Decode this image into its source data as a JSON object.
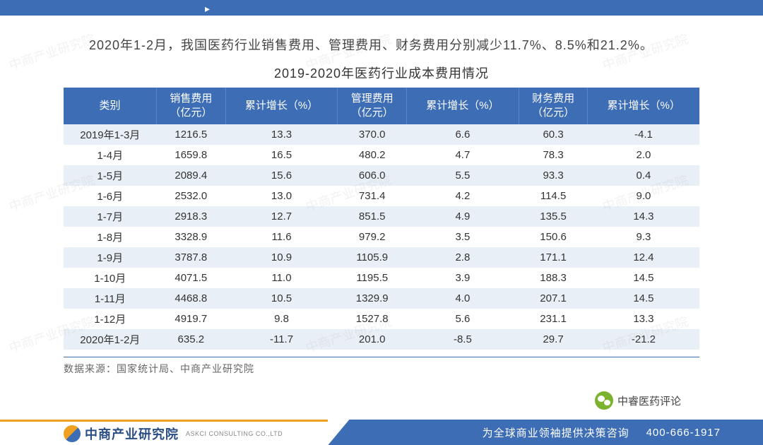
{
  "paragraph": "2020年1-2月，我国医药行业销售费用、管理费用、财务费用分别减少11.7%、8.5%和21.2%。",
  "table": {
    "title": "2019-2020年医药行业成本费用情况",
    "columns": [
      "类别",
      "销售费用（亿元）",
      "累计增长（%）",
      "管理费用（亿元）",
      "累计增长（%）",
      "财务费用（亿元）",
      "累计增长（%）"
    ],
    "rows": [
      [
        "2019年1-3月",
        "1216.5",
        "13.3",
        "370.0",
        "6.6",
        "60.3",
        "-4.1"
      ],
      [
        "1-4月",
        "1659.8",
        "16.5",
        "480.2",
        "4.7",
        "78.3",
        "2.0"
      ],
      [
        "1-5月",
        "2089.4",
        "15.6",
        "606.0",
        "5.5",
        "93.3",
        "0.4"
      ],
      [
        "1-6月",
        "2532.0",
        "13.0",
        "731.4",
        "4.2",
        "114.5",
        "9.0"
      ],
      [
        "1-7月",
        "2918.3",
        "12.7",
        "851.5",
        "4.9",
        "135.5",
        "14.3"
      ],
      [
        "1-8月",
        "3328.9",
        "11.6",
        "979.2",
        "3.5",
        "150.6",
        "9.3"
      ],
      [
        "1-9月",
        "3787.8",
        "10.9",
        "1105.9",
        "2.8",
        "171.1",
        "12.4"
      ],
      [
        "1-10月",
        "4071.5",
        "11.0",
        "1195.5",
        "3.9",
        "188.3",
        "14.5"
      ],
      [
        "1-11月",
        "4468.8",
        "10.5",
        "1329.9",
        "4.0",
        "207.1",
        "14.5"
      ],
      [
        "1-12月",
        "4919.7",
        "9.8",
        "1527.8",
        "5.6",
        "231.1",
        "13.3"
      ],
      [
        "2020年1-2月",
        "635.2",
        "-11.7",
        "201.0",
        "-8.5",
        "29.7",
        "-21.2"
      ]
    ],
    "header_bg": "#3d6db5",
    "header_fg": "#ffffff",
    "row_alt_bg": "#e9eff6",
    "font_size": 15
  },
  "source": "数据来源：国家统计局、中商产业研究院",
  "footer": {
    "brand_cn": "中商产业研究院",
    "brand_en": "ASKCI CONSULTING CO.,LTD",
    "slogan": "为全球商业领袖提供决策咨询",
    "phone": "400-666-1917",
    "brand_color": "#3d6db5",
    "accent_color": "#f0a020"
  },
  "wechat": {
    "label": "中睿医药评论"
  },
  "watermark_text": "中商产业研究院"
}
